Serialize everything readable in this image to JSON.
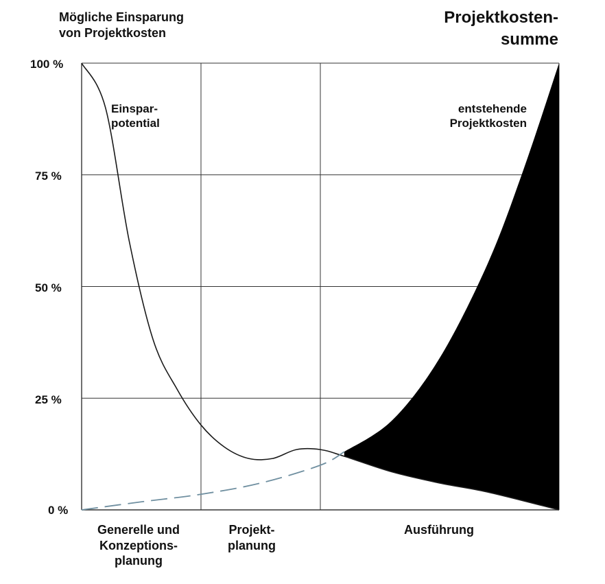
{
  "chart_data": {
    "type": "area",
    "title_left": [
      "Mögliche Einsparung",
      "von Projektkosten"
    ],
    "title_right": [
      "Projektkosten-",
      "summe"
    ],
    "y_ticks": [
      "100 %",
      "75 %",
      "50 %",
      "25 %",
      "0 %"
    ],
    "y_tick_values": [
      100,
      75,
      50,
      25,
      0
    ],
    "ylim": [
      0,
      100
    ],
    "xlim": [
      0,
      4
    ],
    "phases": [
      {
        "label": [
          "Generelle und",
          "Konzeptions-",
          "planung"
        ],
        "start": 0,
        "end": 1
      },
      {
        "label": [
          "Projekt-",
          "planung"
        ],
        "start": 1,
        "end": 2
      },
      {
        "label": [
          "Ausführung"
        ],
        "start": 2,
        "end": 4
      }
    ],
    "grid": true,
    "series": [
      {
        "name": "Einspar-potential",
        "label_lines": [
          "Einspar-",
          "potential"
        ],
        "style": "solid-line",
        "x": [
          0,
          0.2,
          0.4,
          0.6,
          0.8,
          1.0,
          1.2,
          1.4,
          1.6,
          1.8,
          2.0,
          2.2,
          2.6,
          3.0,
          3.4,
          4.0
        ],
        "y": [
          100,
          90,
          60,
          38,
          27,
          19,
          14,
          11.5,
          11.5,
          13.5,
          13.5,
          12,
          8.5,
          6,
          4,
          0
        ]
      },
      {
        "name": "entstehende Projektkosten",
        "label_lines": [
          "entstehende",
          "Projektkosten"
        ],
        "style": "filled-area",
        "x": [
          2.2,
          2.6,
          3.0,
          3.4,
          3.7,
          4.0
        ],
        "y": [
          13,
          20,
          34,
          55,
          76,
          100
        ]
      },
      {
        "style": "dashed-line",
        "x": [
          0,
          0.5,
          1.0,
          1.5,
          2.0,
          2.2
        ],
        "y": [
          0,
          1.8,
          3.5,
          6,
          10,
          13
        ]
      }
    ],
    "colors": {
      "line": "#1a1a1a",
      "fill": "#000000",
      "dashed": "#6f8fa0",
      "grid": "#333333"
    }
  }
}
